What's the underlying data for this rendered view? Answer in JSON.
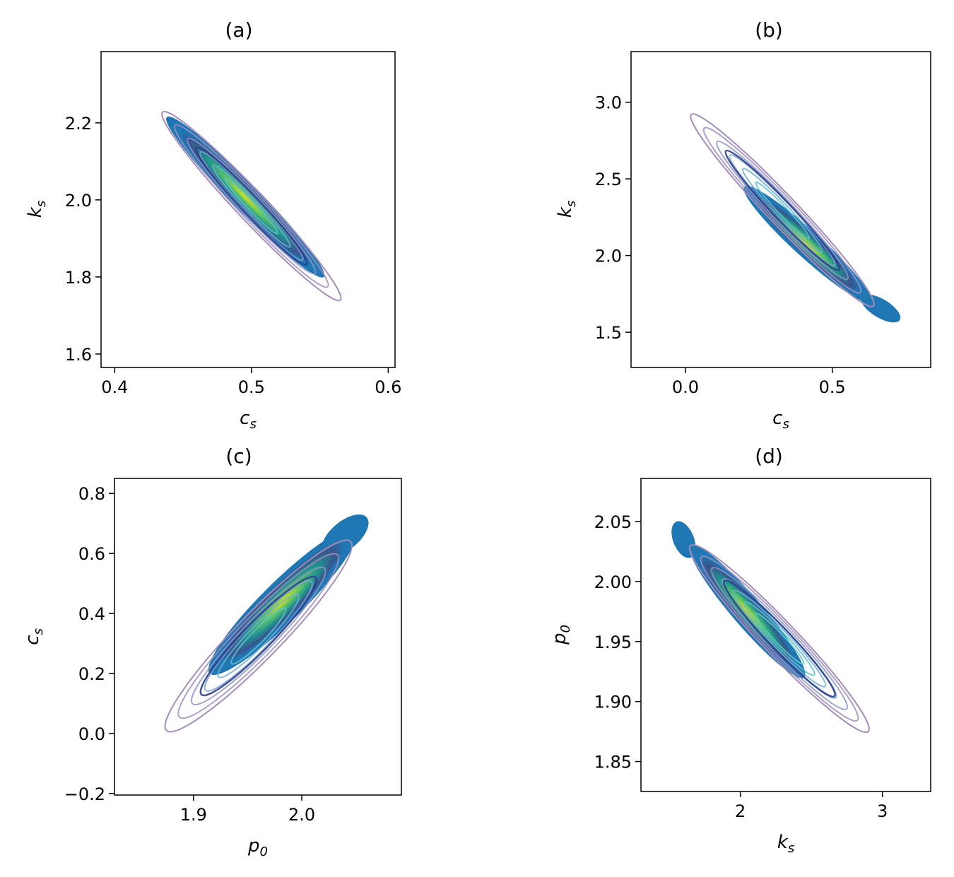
{
  "chart_data": [
    {
      "type": "scatter",
      "title": "(a)",
      "xlabel": "c",
      "xlabel_sub": "s",
      "ylabel": "k",
      "ylabel_sub": "s",
      "xlim": [
        0.39,
        0.605
      ],
      "ylim": [
        1.565,
        2.385
      ],
      "xticks": [
        0.4,
        0.5,
        0.6
      ],
      "xtick_labels": [
        "0.4",
        "0.5",
        "0.6"
      ],
      "yticks": [
        1.6,
        1.8,
        2.0,
        2.2
      ],
      "ytick_labels": [
        "1.6",
        "1.8",
        "2.0",
        "2.2"
      ],
      "samples": {
        "center": [
          0.497,
          1.995
        ],
        "start": [
          0.438,
          2.215
        ],
        "end": [
          0.553,
          1.8
        ],
        "half_width": 0.012,
        "tail": null
      },
      "contours": {
        "center": [
          0.5,
          1.985
        ],
        "outer_start": [
          0.435,
          2.228
        ],
        "outer_end": [
          0.565,
          1.74
        ],
        "half_width": 0.0135,
        "levels": 6
      }
    },
    {
      "type": "scatter",
      "title": "(b)",
      "xlabel": "c",
      "xlabel_sub": "s",
      "ylabel": "k",
      "ylabel_sub": "s",
      "xlim": [
        -0.185,
        0.835
      ],
      "ylim": [
        1.27,
        3.33
      ],
      "xticks": [
        0.0,
        0.5
      ],
      "xtick_labels": [
        "0.0",
        "0.5"
      ],
      "yticks": [
        1.5,
        2.0,
        2.5,
        3.0
      ],
      "ytick_labels": [
        "1.5",
        "2.0",
        "2.5",
        "3.0"
      ],
      "samples": {
        "center": [
          0.33,
          2.27
        ],
        "start": [
          0.2,
          2.45
        ],
        "end": [
          0.63,
          1.7
        ],
        "half_width": 0.05,
        "tail": [
          [
            0.6,
            1.73
          ],
          [
            0.73,
            1.58
          ]
        ]
      },
      "contours": {
        "center": [
          0.3,
          2.35
        ],
        "outer_start": [
          0.02,
          2.92
        ],
        "outer_end": [
          0.64,
          1.67
        ],
        "half_width": 0.06,
        "levels": 6
      }
    },
    {
      "type": "scatter",
      "title": "(c)",
      "xlabel": "p",
      "xlabel_sub": "0",
      "ylabel": "c",
      "ylabel_sub": "s",
      "xlim": [
        1.827,
        2.092
      ],
      "ylim": [
        -0.205,
        0.85
      ],
      "xticks": [
        1.9,
        2.0
      ],
      "xtick_labels": [
        "1.9",
        "2.0"
      ],
      "yticks": [
        -0.2,
        0.0,
        0.2,
        0.4,
        0.6,
        0.8
      ],
      "ytick_labels": [
        "−0.2",
        "0.0",
        "0.2",
        "0.4",
        "0.6",
        "0.8"
      ],
      "samples": {
        "center": [
          1.965,
          0.37
        ],
        "start": [
          1.915,
          0.2
        ],
        "end": [
          2.05,
          0.68
        ],
        "half_width": 0.03,
        "tail": [
          [
            2.02,
            0.6
          ],
          [
            2.06,
            0.72
          ]
        ]
      },
      "contours": {
        "center": [
          1.955,
          0.33
        ],
        "outer_start": [
          1.875,
          0.01
        ],
        "outer_end": [
          2.045,
          0.64
        ],
        "half_width": 0.035,
        "levels": 6
      }
    },
    {
      "type": "scatter",
      "title": "(d)",
      "xlabel": "k",
      "xlabel_sub": "s",
      "ylabel": "p",
      "ylabel_sub": "0",
      "xlim": [
        1.3,
        3.34
      ],
      "ylim": [
        1.825,
        2.086
      ],
      "xticks": [
        2,
        3
      ],
      "xtick_labels": [
        "2",
        "3"
      ],
      "yticks": [
        1.85,
        1.9,
        1.95,
        2.0,
        2.05
      ],
      "ytick_labels": [
        "1.85",
        "1.90",
        "1.95",
        "2.00",
        "2.05"
      ],
      "samples": {
        "center": [
          2.1,
          1.98
        ],
        "start": [
          1.65,
          2.03
        ],
        "end": [
          2.45,
          1.92
        ],
        "half_width": 0.018,
        "tail": [
          [
            1.55,
            2.05
          ],
          [
            1.65,
            2.02
          ]
        ]
      },
      "contours": {
        "center": [
          2.3,
          1.955
        ],
        "outer_start": [
          1.65,
          2.03
        ],
        "outer_end": [
          2.9,
          1.875
        ],
        "half_width": 0.022,
        "levels": 7
      }
    }
  ]
}
